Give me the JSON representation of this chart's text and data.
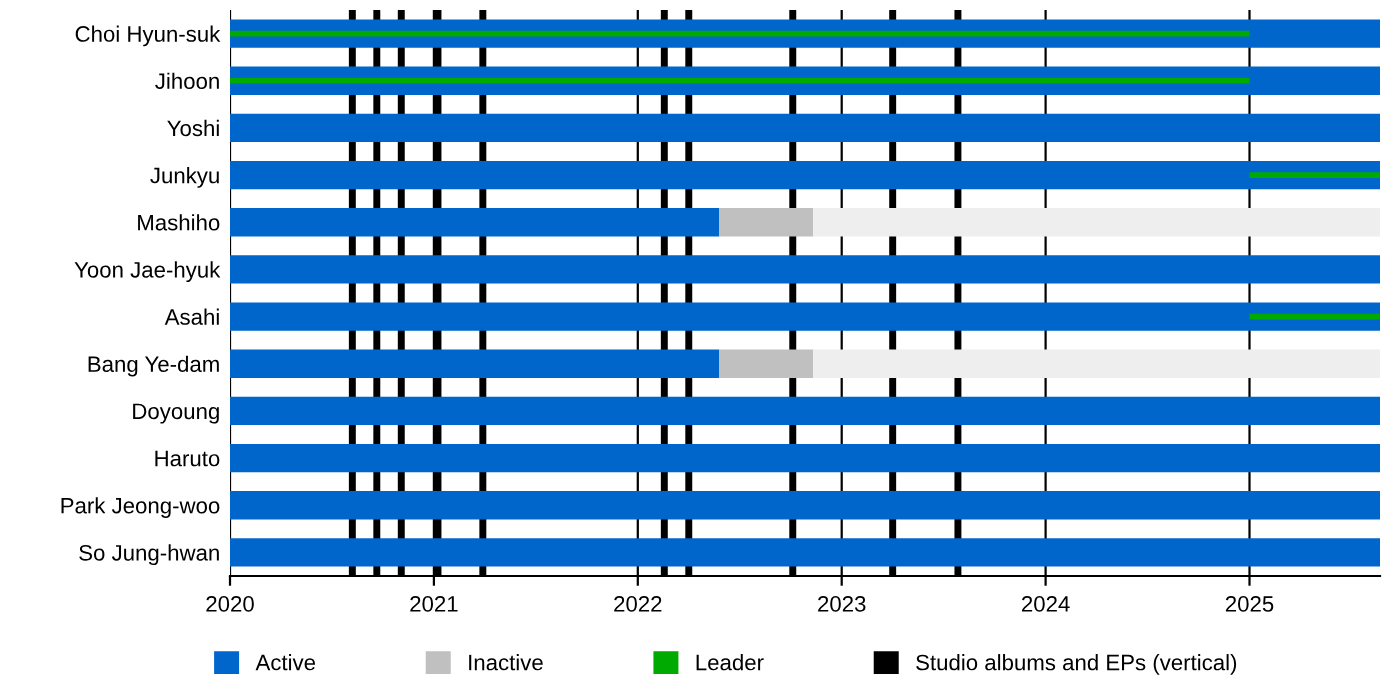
{
  "chart_data": {
    "type": "bar",
    "orientation": "horizontal",
    "categories": [
      "Choi Hyun-suk",
      "Jihoon",
      "Yoshi",
      "Junkyu",
      "Mashiho",
      "Yoon Jae-hyuk",
      "Asahi",
      "Bang Ye-dam",
      "Doyoung",
      "Haruto",
      "Park Jeong-woo",
      "So Jung-hwan"
    ],
    "series": [
      {
        "name": "Active",
        "color": "#0066cc",
        "base": [
          2020,
          2020,
          2020,
          2020,
          2020,
          2020,
          2020,
          2020,
          2020,
          2020,
          2020,
          2020
        ],
        "values": [
          5.64,
          5.64,
          5.64,
          5.64,
          2.4,
          5.64,
          5.64,
          2.4,
          5.64,
          5.64,
          5.64,
          5.64
        ]
      },
      {
        "name": "Inactive",
        "color": "#c0c0c0",
        "base": [
          null,
          null,
          null,
          null,
          2022.4,
          null,
          null,
          2022.4,
          null,
          null,
          null,
          null
        ],
        "values": [
          null,
          null,
          null,
          null,
          0.46,
          null,
          null,
          0.46,
          null,
          null,
          null,
          null
        ]
      },
      {
        "color": "#eeeeee",
        "base": [
          null,
          null,
          null,
          null,
          2022.86,
          null,
          null,
          2022.86,
          null,
          null,
          null,
          null
        ],
        "values": [
          null,
          null,
          null,
          null,
          2.78,
          null,
          null,
          2.78,
          null,
          null,
          null,
          null
        ]
      },
      {
        "name": "Leader",
        "color": "#00aa00",
        "base": [
          2020,
          2020,
          null,
          2025,
          null,
          null,
          2025,
          null,
          null,
          null,
          null,
          null
        ],
        "values": [
          5.0,
          5.0,
          null,
          0.64,
          null,
          null,
          0.64,
          null,
          null,
          null,
          null,
          null
        ]
      }
    ],
    "xlim": [
      2020,
      2025.64
    ],
    "xticks": [
      2020,
      2021,
      2022,
      2023,
      2024,
      2025
    ],
    "grid": "x",
    "legend": "bottom",
    "ref_lines": [
      {
        "axis": "x",
        "value": 2020.6,
        "color": "#000000",
        "label": "Studio albums and EPs (vertical)"
      },
      {
        "axis": "x",
        "value": 2020.72,
        "color": "#000000"
      },
      {
        "axis": "x",
        "value": 2020.84,
        "color": "#000000"
      },
      {
        "axis": "x",
        "value": 2021.02,
        "color": "#000000"
      },
      {
        "axis": "x",
        "value": 2021.24,
        "color": "#000000"
      },
      {
        "axis": "x",
        "value": 2022.13,
        "color": "#000000"
      },
      {
        "axis": "x",
        "value": 2022.25,
        "color": "#000000"
      },
      {
        "axis": "x",
        "value": 2022.76,
        "color": "#000000"
      },
      {
        "axis": "x",
        "value": 2023.25,
        "color": "#000000"
      },
      {
        "axis": "x",
        "value": 2023.57,
        "color": "#000000"
      }
    ]
  }
}
